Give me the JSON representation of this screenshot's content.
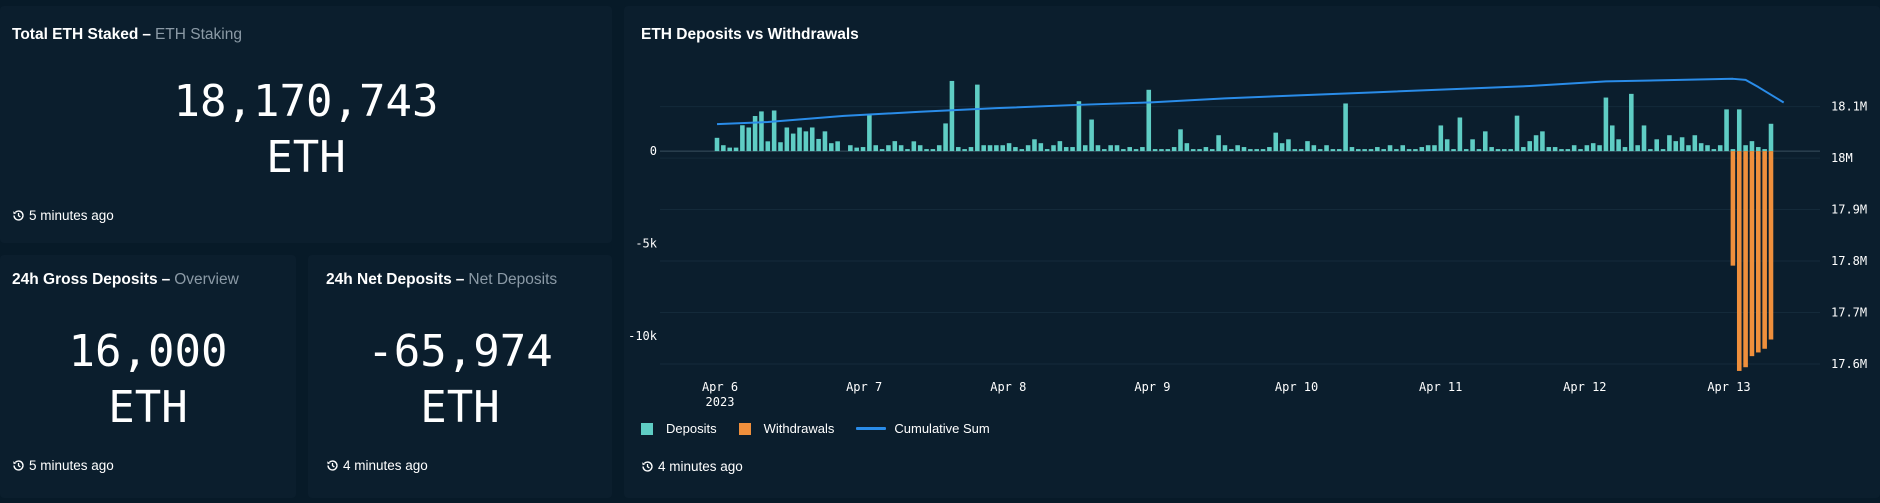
{
  "cards": {
    "total_staked": {
      "title": "Total ETH Staked",
      "dash": "–",
      "subtitle": "ETH Staking",
      "value": "18,170,743",
      "unit": "ETH",
      "updated": "5 minutes ago"
    },
    "gross_deposits": {
      "title": "24h Gross Deposits",
      "dash": "–",
      "subtitle": "Overview",
      "value": "16,000",
      "unit": "ETH",
      "updated": "5 minutes ago"
    },
    "net_deposits": {
      "title": "24h Net Deposits",
      "dash": "–",
      "subtitle": "Net Deposits",
      "value": "-65,974",
      "unit": "ETH",
      "updated": "4 minutes ago"
    },
    "chart_card": {
      "title": "ETH Deposits vs Withdrawals",
      "updated": "4 minutes ago"
    }
  },
  "icons": {
    "clock": "history-clock-icon"
  },
  "colors": {
    "background": "#071a28",
    "card": "#0b1e2d",
    "deposits": "#5fcdc4",
    "withdrawals": "#ef8f3c",
    "cumulative": "#2a8ce8"
  },
  "chart_data": {
    "type": "bar",
    "title": "ETH Deposits vs Withdrawals",
    "x_ticks": [
      "Apr 6",
      "Apr 7",
      "Apr 8",
      "Apr 9",
      "Apr 10",
      "Apr 11",
      "Apr 12",
      "Apr 13"
    ],
    "x_year_label": "2023",
    "y_left": {
      "ticks": [
        "0",
        "-5k",
        "-10k"
      ],
      "tick_values": [
        0,
        -5000,
        -10000
      ],
      "range": [
        -12500,
        4500
      ]
    },
    "y_right": {
      "ticks": [
        "18.1M",
        "18M",
        "17.9M",
        "17.8M",
        "17.7M",
        "17.6M"
      ],
      "tick_values": [
        18100000,
        18000000,
        17900000,
        17800000,
        17700000,
        17600000
      ],
      "range": [
        17565000,
        18175000
      ]
    },
    "grid": true,
    "legend_position": "bottom-left",
    "series": [
      {
        "name": "Deposits",
        "color": "#5fcdc4",
        "axis": "left",
        "values": [
          720,
          320,
          190,
          190,
          1400,
          1280,
          1900,
          2150,
          530,
          2200,
          480,
          1280,
          950,
          1280,
          1070,
          1280,
          660,
          1070,
          430,
          530,
          0,
          320,
          190,
          220,
          2000,
          320,
          110,
          320,
          540,
          320,
          110,
          530,
          320,
          110,
          110,
          320,
          1500,
          3800,
          220,
          110,
          220,
          3600,
          320,
          320,
          320,
          320,
          430,
          220,
          110,
          320,
          640,
          430,
          110,
          320,
          540,
          220,
          220,
          2700,
          320,
          1710,
          320,
          110,
          320,
          320,
          110,
          220,
          110,
          220,
          3320,
          110,
          110,
          110,
          220,
          1180,
          430,
          110,
          110,
          220,
          110,
          860,
          320,
          110,
          320,
          220,
          110,
          110,
          110,
          220,
          1000,
          430,
          640,
          110,
          110,
          540,
          320,
          110,
          320,
          110,
          110,
          2580,
          220,
          110,
          110,
          110,
          220,
          110,
          320,
          110,
          320,
          110,
          110,
          220,
          320,
          320,
          1390,
          640,
          110,
          1820,
          110,
          640,
          110,
          1070,
          220,
          110,
          110,
          110,
          1920,
          220,
          540,
          860,
          1070,
          220,
          220,
          110,
          110,
          320,
          110,
          320,
          430,
          320,
          2900,
          1390,
          640,
          220,
          3100,
          320,
          1390,
          110,
          640,
          110,
          860,
          540,
          750,
          320,
          860,
          430,
          320,
          110,
          320,
          2260,
          110,
          2260,
          320,
          540,
          220,
          110,
          1480
        ]
      },
      {
        "name": "Withdrawals",
        "color": "#ef8f3c",
        "axis": "left",
        "values": [
          0,
          0,
          0,
          0,
          0,
          0,
          0,
          0,
          0,
          0,
          0,
          0,
          0,
          0,
          0,
          0,
          0,
          0,
          0,
          0,
          0,
          0,
          0,
          0,
          0,
          0,
          0,
          0,
          0,
          0,
          0,
          0,
          0,
          0,
          0,
          0,
          0,
          0,
          0,
          0,
          0,
          0,
          0,
          0,
          0,
          0,
          0,
          0,
          0,
          0,
          0,
          0,
          0,
          0,
          0,
          0,
          0,
          0,
          0,
          0,
          0,
          0,
          0,
          0,
          0,
          0,
          0,
          0,
          0,
          0,
          0,
          0,
          0,
          0,
          0,
          0,
          0,
          0,
          0,
          0,
          0,
          0,
          0,
          0,
          0,
          0,
          0,
          0,
          0,
          0,
          0,
          0,
          0,
          0,
          0,
          0,
          0,
          0,
          0,
          0,
          0,
          0,
          0,
          0,
          0,
          0,
          0,
          0,
          0,
          0,
          0,
          0,
          0,
          0,
          0,
          0,
          0,
          0,
          0,
          0,
          0,
          0,
          0,
          0,
          0,
          0,
          0,
          0,
          0,
          0,
          0,
          0,
          0,
          0,
          0,
          0,
          0,
          0,
          0,
          0,
          0,
          0,
          0,
          0,
          0,
          0,
          0,
          0,
          0,
          0,
          0,
          0,
          0,
          0,
          0,
          0,
          0,
          0,
          0,
          0,
          -6200,
          -11900,
          -11700,
          -11100,
          -10900,
          -10700,
          -10200,
          -9800
        ]
      },
      {
        "name": "Cumulative Sum",
        "color": "#2a8ce8",
        "axis": "right",
        "points": [
          [
            0,
            18066000
          ],
          [
            8,
            18070000
          ],
          [
            20,
            18082000
          ],
          [
            32,
            18090000
          ],
          [
            44,
            18097000
          ],
          [
            56,
            18103000
          ],
          [
            68,
            18108000
          ],
          [
            80,
            18116000
          ],
          [
            92,
            18122000
          ],
          [
            104,
            18128000
          ],
          [
            116,
            18134000
          ],
          [
            128,
            18140000
          ],
          [
            140,
            18149000
          ],
          [
            148,
            18151000
          ],
          [
            160,
            18154000
          ],
          [
            162,
            18152000
          ],
          [
            164,
            18138000
          ],
          [
            168,
            18108000
          ]
        ]
      }
    ]
  }
}
